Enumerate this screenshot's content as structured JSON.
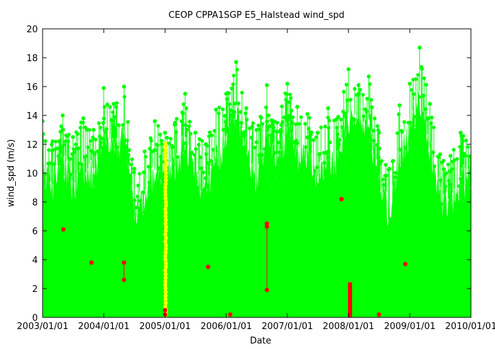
{
  "chart_data": {
    "type": "scatter",
    "title": "CEOP CPPA1SGP E5_Halstead wind_spd",
    "xlabel": "Date",
    "ylabel": "wind_spd (m/s)",
    "xlim": [
      "2003/01/01",
      "2010/01/01"
    ],
    "ylim": [
      0,
      20
    ],
    "x_tick_labels": [
      "2003/01/01",
      "2004/01/01",
      "2005/01/01",
      "2006/01/01",
      "2007/01/01",
      "2008/01/01",
      "2009/01/01",
      "2010/01/01"
    ],
    "y_ticks": [
      0,
      2,
      4,
      6,
      8,
      10,
      12,
      14,
      16,
      18,
      20
    ],
    "grid": false,
    "legend": "none",
    "colors": {
      "good": "#00ff00",
      "questionable": "#ffff00",
      "bad": "#ff0000",
      "frame": "#000000"
    },
    "series": [
      {
        "color": "#00ff00",
        "envelope_max": [
          {
            "x": "2003/01/01",
            "y": 13.6
          },
          {
            "x": "2003/03/01",
            "y": 12.2
          },
          {
            "x": "2003/05/01",
            "y": 14.0
          },
          {
            "x": "2003/07/01",
            "y": 12.5
          },
          {
            "x": "2003/09/01",
            "y": 13.8
          },
          {
            "x": "2003/11/01",
            "y": 13.0
          },
          {
            "x": "2004/01/01",
            "y": 15.9
          },
          {
            "x": "2004/03/01",
            "y": 14.8
          },
          {
            "x": "2004/05/01",
            "y": 16.0
          },
          {
            "x": "2004/07/01",
            "y": 10.3
          },
          {
            "x": "2004/09/01",
            "y": 11.5
          },
          {
            "x": "2004/11/01",
            "y": 13.6
          },
          {
            "x": "2005/01/01",
            "y": 12.8
          },
          {
            "x": "2005/03/01",
            "y": 13.5
          },
          {
            "x": "2005/05/01",
            "y": 15.5
          },
          {
            "x": "2005/07/01",
            "y": 12.8
          },
          {
            "x": "2005/09/01",
            "y": 12.0
          },
          {
            "x": "2005/11/01",
            "y": 14.4
          },
          {
            "x": "2006/01/01",
            "y": 15.5
          },
          {
            "x": "2006/03/01",
            "y": 17.7
          },
          {
            "x": "2006/05/01",
            "y": 14.5
          },
          {
            "x": "2006/07/01",
            "y": 13.0
          },
          {
            "x": "2006/09/01",
            "y": 16.1
          },
          {
            "x": "2006/11/01",
            "y": 13.5
          },
          {
            "x": "2007/01/01",
            "y": 16.2
          },
          {
            "x": "2007/03/01",
            "y": 14.6
          },
          {
            "x": "2007/05/01",
            "y": 14.1
          },
          {
            "x": "2007/07/01",
            "y": 12.8
          },
          {
            "x": "2007/09/01",
            "y": 14.5
          },
          {
            "x": "2007/11/01",
            "y": 13.9
          },
          {
            "x": "2008/01/01",
            "y": 17.2
          },
          {
            "x": "2008/03/01",
            "y": 16.1
          },
          {
            "x": "2008/05/01",
            "y": 16.7
          },
          {
            "x": "2008/07/01",
            "y": 12.8
          },
          {
            "x": "2008/09/01",
            "y": 10.3
          },
          {
            "x": "2008/11/01",
            "y": 14.7
          },
          {
            "x": "2009/01/01",
            "y": 16.2
          },
          {
            "x": "2009/03/01",
            "y": 18.7
          },
          {
            "x": "2009/05/01",
            "y": 14.8
          },
          {
            "x": "2009/07/01",
            "y": 11.3
          },
          {
            "x": "2009/09/01",
            "y": 11.2
          },
          {
            "x": "2009/11/01",
            "y": 12.8
          }
        ]
      },
      {
        "color": "#ffff00",
        "x_range": [
          "2004/12/28",
          "2005/01/12"
        ],
        "y_range": [
          0,
          12.2
        ]
      },
      {
        "color": "#ff0000",
        "points": [
          {
            "x": "2003/05/05",
            "y": 6.1
          },
          {
            "x": "2003/10/20",
            "y": 3.8
          },
          {
            "x": "2004/05/01",
            "y": 3.8
          },
          {
            "x": "2004/05/01",
            "y": 2.6
          },
          {
            "x": "2005/01/01",
            "y": 0.5
          },
          {
            "x": "2005/01/01",
            "y": 0.2
          },
          {
            "x": "2005/09/15",
            "y": 3.5
          },
          {
            "x": "2006/01/25",
            "y": 0.2
          },
          {
            "x": "2006/09/01",
            "y": 6.5
          },
          {
            "x": "2006/09/01",
            "y": 6.3
          },
          {
            "x": "2006/09/01",
            "y": 1.9
          },
          {
            "x": "2007/11/20",
            "y": 8.2
          },
          {
            "x": "2008/01/10",
            "y": 2.3
          },
          {
            "x": "2008/01/10",
            "y": 1.8
          },
          {
            "x": "2008/01/10",
            "y": 1.3
          },
          {
            "x": "2008/01/10",
            "y": 0.8
          },
          {
            "x": "2008/01/10",
            "y": 0.3
          },
          {
            "x": "2008/01/10",
            "y": 0.0
          },
          {
            "x": "2008/07/01",
            "y": 0.2
          },
          {
            "x": "2008/12/05",
            "y": 3.7
          }
        ]
      }
    ]
  }
}
